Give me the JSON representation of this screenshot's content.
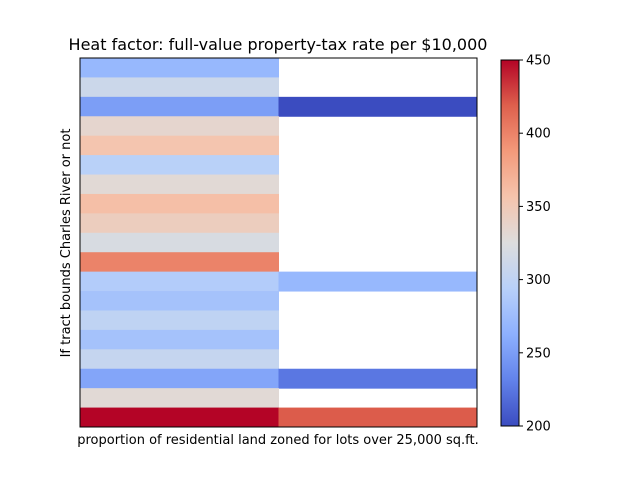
{
  "chart_data": {
    "type": "heatmap",
    "title": "Heat factor: full-value property-tax rate per $10,000",
    "xlabel": "proportion of residential land zoned for lots over 25,000 sq.ft.",
    "ylabel": "If tract bounds Charles River or not",
    "columns": 2,
    "rows": 19,
    "values": [
      [
        270,
        null
      ],
      [
        310,
        null
      ],
      [
        250,
        200
      ],
      [
        335,
        null
      ],
      [
        355,
        null
      ],
      [
        295,
        null
      ],
      [
        330,
        null
      ],
      [
        360,
        null
      ],
      [
        345,
        null
      ],
      [
        320,
        null
      ],
      [
        400,
        null
      ],
      [
        290,
        270
      ],
      [
        280,
        null
      ],
      [
        300,
        null
      ],
      [
        280,
        null
      ],
      [
        305,
        null
      ],
      [
        255,
        225
      ],
      [
        330,
        null
      ],
      [
        450,
        420
      ]
    ],
    "colorbar": {
      "min": 200,
      "max": 450,
      "ticks": [
        200,
        250,
        300,
        350,
        400,
        450
      ],
      "colormap": "coolwarm"
    },
    "grid": false
  }
}
